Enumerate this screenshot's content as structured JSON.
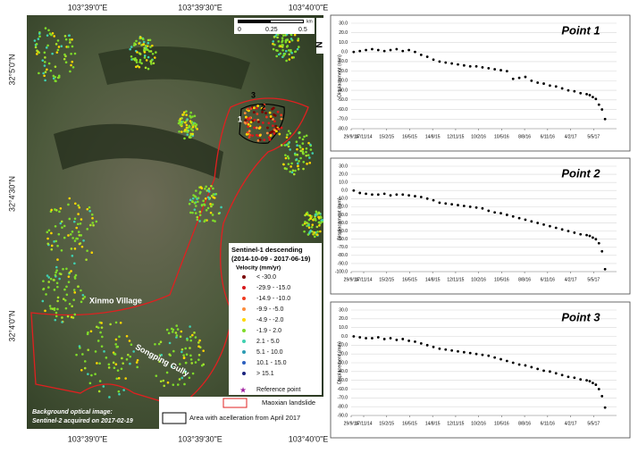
{
  "map": {
    "lon_top": [
      "103°39'0\"E",
      "103°39'30\"E",
      "103°40'0\"E"
    ],
    "lon_bottom": [
      "103°39'0\"E",
      "103°39'30\"E",
      "103°40'0\"E"
    ],
    "lat_left": [
      "32°5'0\"N",
      "32°4'30\"N",
      "32°4'0\"N"
    ],
    "scale": [
      "0",
      "0.25",
      "0.5",
      "km"
    ],
    "north": "N",
    "points": [
      "1",
      "2",
      "3"
    ],
    "places": [
      "Xinmo Village",
      "Songping Gully"
    ],
    "legend": {
      "title": "Sentinel-1 descending",
      "period": "(2014-10-09 - 2017-06-19)",
      "unit": "Velocity (mm/yr)",
      "classes": [
        {
          "label": "< -30.0",
          "color": "#7a0000"
        },
        {
          "label": "-29.9 - -15.0",
          "color": "#d7191c"
        },
        {
          "label": "-14.9 - -10.0",
          "color": "#f03b20"
        },
        {
          "label": "-9.9 - -5.0",
          "color": "#fd8d3c"
        },
        {
          "label": "-4.9 - -2.0",
          "color": "#ffd700"
        },
        {
          "label": "-1.9 - 2.0",
          "color": "#7fdc2a"
        },
        {
          "label": "2.1 - 5.0",
          "color": "#3fd0b0"
        },
        {
          "label": "5.1 - 10.0",
          "color": "#2b9bb3"
        },
        {
          "label": "10.1 - 15.0",
          "color": "#2c5fbf"
        },
        {
          "label": "> 15.1",
          "color": "#1a237e"
        }
      ],
      "reference": "Reference point",
      "landslide": "Maoxian landslide",
      "area": "Area with acelleration from April 2017"
    },
    "background": [
      "Background optical image:",
      "Sentinel-2 acquired on 2017-02-19"
    ]
  },
  "chart_data": [
    {
      "type": "scatter",
      "title": "Point 1",
      "y_label": "Displacement (mm)",
      "color": "#000000",
      "x": [
        "9/10/14",
        "2/11/14",
        "26/11/14",
        "20/12/14",
        "13/1/15",
        "6/2/15",
        "2/3/15",
        "26/3/15",
        "19/4/15",
        "13/5/15",
        "6/6/15",
        "30/6/15",
        "24/7/15",
        "17/8/15",
        "10/9/15",
        "4/10/15",
        "28/10/15",
        "21/11/15",
        "15/12/15",
        "8/1/16",
        "1/2/16",
        "25/2/16",
        "20/3/16",
        "13/4/16",
        "7/5/16",
        "31/5/16",
        "24/6/16",
        "18/7/16",
        "11/8/16",
        "4/9/16",
        "28/9/16",
        "22/10/16",
        "15/11/16",
        "9/12/16",
        "2/1/17",
        "26/1/17",
        "19/2/17",
        "15/3/17",
        "8/4/17",
        "20/4/17",
        "2/5/17",
        "14/5/17",
        "26/5/17",
        "7/6/17",
        "19/6/17"
      ],
      "values": [
        0,
        1,
        2,
        3,
        2,
        1,
        2,
        3,
        1,
        2,
        0,
        -3,
        -5,
        -8,
        -10,
        -11,
        -12,
        -13,
        -14,
        -15,
        -15,
        -16,
        -17,
        -18,
        -19,
        -20,
        -28,
        -27,
        -26,
        -30,
        -32,
        -33,
        -35,
        -36,
        -38,
        -40,
        -41,
        -43,
        -44,
        -45,
        -47,
        -49,
        -55,
        -60,
        -70
      ],
      "xlim": [
        "29/9/14",
        "3/8/17"
      ],
      "xticks": [
        "29/9/14",
        "17/11/14",
        "15/2/15",
        "16/5/15",
        "14/8/15",
        "12/11/15",
        "10/2/16",
        "10/5/16",
        "8/8/16",
        "6/11/16",
        "4/2/17",
        "5/5/17"
      ],
      "ylim": [
        -80,
        30
      ],
      "yticks": [
        {
          "value": 30,
          "label": "30.0"
        },
        {
          "value": 20,
          "label": "20.0"
        },
        {
          "value": 10,
          "label": "10.0"
        },
        {
          "value": 0,
          "label": "0.0"
        },
        {
          "value": -10,
          "label": "-10.0"
        },
        {
          "value": -20,
          "label": "-20.0"
        },
        {
          "value": -30,
          "label": "-30.0"
        },
        {
          "value": -40,
          "label": "-40.0"
        },
        {
          "value": -50,
          "label": "-50.0"
        },
        {
          "value": -60,
          "label": "-60.0"
        },
        {
          "value": -70,
          "label": "-70.0"
        },
        {
          "value": -80,
          "label": "-80.0"
        }
      ],
      "grid": true
    },
    {
      "type": "scatter",
      "title": "Point 2",
      "y_label": "Displacement (mm)",
      "color": "#000000",
      "x": [
        "9/10/14",
        "2/11/14",
        "26/11/14",
        "20/12/14",
        "13/1/15",
        "6/2/15",
        "2/3/15",
        "26/3/15",
        "19/4/15",
        "13/5/15",
        "6/6/15",
        "30/6/15",
        "24/7/15",
        "17/8/15",
        "10/9/15",
        "4/10/15",
        "28/10/15",
        "21/11/15",
        "15/12/15",
        "8/1/16",
        "1/2/16",
        "25/2/16",
        "20/3/16",
        "13/4/16",
        "7/5/16",
        "31/5/16",
        "24/6/16",
        "18/7/16",
        "11/8/16",
        "4/9/16",
        "28/9/16",
        "22/10/16",
        "15/11/16",
        "9/12/16",
        "2/1/17",
        "26/1/17",
        "19/2/17",
        "15/3/17",
        "8/4/17",
        "20/4/17",
        "2/5/17",
        "14/5/17",
        "26/5/17",
        "7/6/17",
        "19/6/17"
      ],
      "values": [
        0,
        -3,
        -4,
        -5,
        -5,
        -4,
        -6,
        -5,
        -5,
        -6,
        -7,
        -8,
        -10,
        -12,
        -15,
        -16,
        -17,
        -18,
        -19,
        -20,
        -21,
        -22,
        -25,
        -27,
        -28,
        -30,
        -32,
        -34,
        -36,
        -38,
        -40,
        -42,
        -44,
        -46,
        -48,
        -50,
        -52,
        -54,
        -55,
        -56,
        -58,
        -60,
        -65,
        -75,
        -97
      ],
      "xlim": [
        "29/9/14",
        "3/8/17"
      ],
      "xticks": [
        "29/9/14",
        "17/11/14",
        "15/2/15",
        "16/5/15",
        "14/8/15",
        "12/11/15",
        "10/2/16",
        "10/5/16",
        "8/8/16",
        "6/11/16",
        "4/2/17",
        "5/5/17"
      ],
      "ylim": [
        -100,
        30
      ],
      "yticks": [
        {
          "value": 30,
          "label": "30.0"
        },
        {
          "value": 20,
          "label": "20.0"
        },
        {
          "value": 10,
          "label": "10.0"
        },
        {
          "value": 0,
          "label": "0.0"
        },
        {
          "value": -10,
          "label": "-10.0"
        },
        {
          "value": -20,
          "label": "-20.0"
        },
        {
          "value": -30,
          "label": "-30.0"
        },
        {
          "value": -40,
          "label": "-40.0"
        },
        {
          "value": -50,
          "label": "-50.0"
        },
        {
          "value": -60,
          "label": "-60.0"
        },
        {
          "value": -70,
          "label": "-70.0"
        },
        {
          "value": -80,
          "label": "-80.0"
        },
        {
          "value": -90,
          "label": "-90.0"
        },
        {
          "value": -100,
          "label": "-100.0"
        }
      ],
      "grid": true
    },
    {
      "type": "scatter",
      "title": "Point 3",
      "y_label": "Displacement (mm)",
      "color": "#000000",
      "x": [
        "9/10/14",
        "2/11/14",
        "26/11/14",
        "20/12/14",
        "13/1/15",
        "6/2/15",
        "2/3/15",
        "26/3/15",
        "19/4/15",
        "13/5/15",
        "6/6/15",
        "30/6/15",
        "24/7/15",
        "17/8/15",
        "10/9/15",
        "4/10/15",
        "28/10/15",
        "21/11/15",
        "15/12/15",
        "8/1/16",
        "1/2/16",
        "25/2/16",
        "20/3/16",
        "13/4/16",
        "7/5/16",
        "31/5/16",
        "24/6/16",
        "18/7/16",
        "11/8/16",
        "4/9/16",
        "28/9/16",
        "22/10/16",
        "15/11/16",
        "9/12/16",
        "2/1/17",
        "26/1/17",
        "19/2/17",
        "15/3/17",
        "8/4/17",
        "20/4/17",
        "2/5/17",
        "14/5/17",
        "26/5/17",
        "7/6/17",
        "19/6/17"
      ],
      "values": [
        0,
        -1,
        -2,
        -2,
        -1,
        -3,
        -2,
        -4,
        -3,
        -5,
        -6,
        -8,
        -10,
        -12,
        -14,
        -15,
        -16,
        -17,
        -18,
        -19,
        -20,
        -21,
        -22,
        -24,
        -26,
        -28,
        -30,
        -32,
        -33,
        -35,
        -37,
        -39,
        -40,
        -42,
        -44,
        -46,
        -47,
        -49,
        -50,
        -51,
        -53,
        -55,
        -60,
        -68,
        -81
      ],
      "xlim": [
        "29/9/14",
        "3/8/17"
      ],
      "xticks": [
        "29/9/14",
        "17/11/14",
        "15/2/15",
        "16/5/15",
        "14/8/15",
        "12/11/15",
        "10/2/16",
        "10/5/16",
        "8/8/16",
        "6/11/16",
        "4/2/17",
        "5/5/17"
      ],
      "ylim": [
        -90,
        30
      ],
      "yticks": [
        {
          "value": 30,
          "label": "30.0"
        },
        {
          "value": 20,
          "label": "20.0"
        },
        {
          "value": 10,
          "label": "10.0"
        },
        {
          "value": 0,
          "label": "0.0"
        },
        {
          "value": -10,
          "label": "-10.0"
        },
        {
          "value": -20,
          "label": "-20.0"
        },
        {
          "value": -30,
          "label": "-30.0"
        },
        {
          "value": -40,
          "label": "-40.0"
        },
        {
          "value": -50,
          "label": "-50.0"
        },
        {
          "value": -60,
          "label": "-60.0"
        },
        {
          "value": -70,
          "label": "-70.0"
        },
        {
          "value": -80,
          "label": "-80.0"
        },
        {
          "value": -90,
          "label": "-90.0"
        }
      ],
      "grid": true
    }
  ]
}
